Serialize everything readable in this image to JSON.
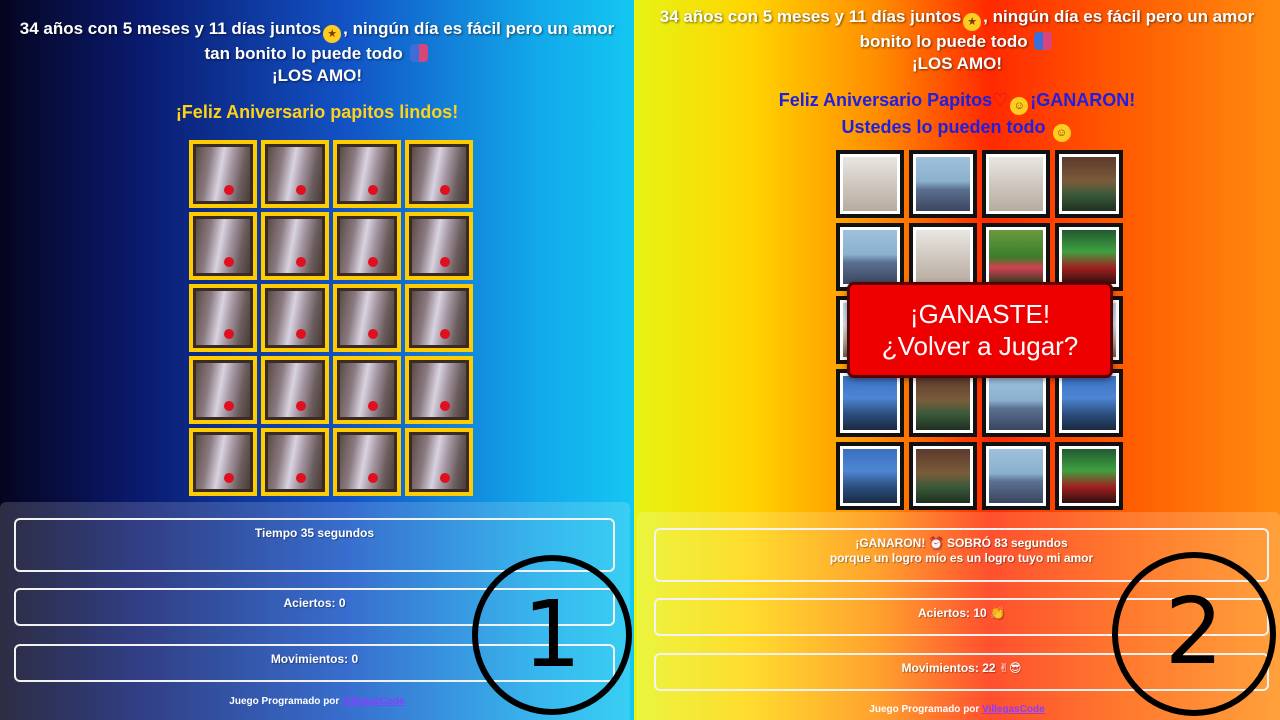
{
  "panel1": {
    "heading_line1": "34 años con 5 meses y 11 días juntos",
    "heading_line1_tail": ", ningún día es fácil pero un amor",
    "heading_line2": "tan bonito lo puede todo",
    "heading_line3": "¡LOS AMO!",
    "subtitle": "¡Feliz Aniversario papitos lindos!",
    "stats": {
      "time_label": "Tiempo 35 segundos",
      "hits_label": "Aciertos: 0",
      "moves_label": "Movimientos: 0"
    },
    "footer_prefix": "Juego Programado por",
    "footer_link": "VillegasCode",
    "badge": "1"
  },
  "panel2": {
    "heading_line1": "34 años con 5 meses y 11 días juntos",
    "heading_line1_tail": ", ningún día es fácil pero un amor",
    "heading_line2": "bonito lo puede todo",
    "heading_line3": "¡LOS AMO!",
    "subtitle_line1_a": "Feliz Aniversario Papitos",
    "subtitle_line1_b": "¡GANARON!",
    "subtitle_line2": "Ustedes lo pueden todo",
    "modal_line1": "¡GANASTE!",
    "modal_line2": "¿Volver a Jugar?",
    "stats": {
      "result_line1_a": "¡GANARON!",
      "result_line1_b": "SOBRÓ 83 segundos",
      "result_line2": "porque un logro mío es un logro tuyo mi amor",
      "hits_label": "Aciertos: 10",
      "moves_label": "Movimientos: 22"
    },
    "footer_prefix": "Juego Programado por",
    "footer_link": "VillegasCode",
    "badge": "2"
  },
  "colors": {
    "panel1_subtitle": "#ffd21a",
    "panel2_subtitle": "#1f1fe0",
    "card_back_border": "#ffcc00",
    "card_front_border": "#111111",
    "modal_bg": "#ee0000"
  },
  "icons": {
    "star_eyes": "star-struck-emoji",
    "couple": "couple-emoji",
    "heart": "red-heart-emoji",
    "alarm": "alarm-clock-emoji",
    "clap": "clapping-hands-emoji",
    "cool": "sunglasses-emoji"
  }
}
